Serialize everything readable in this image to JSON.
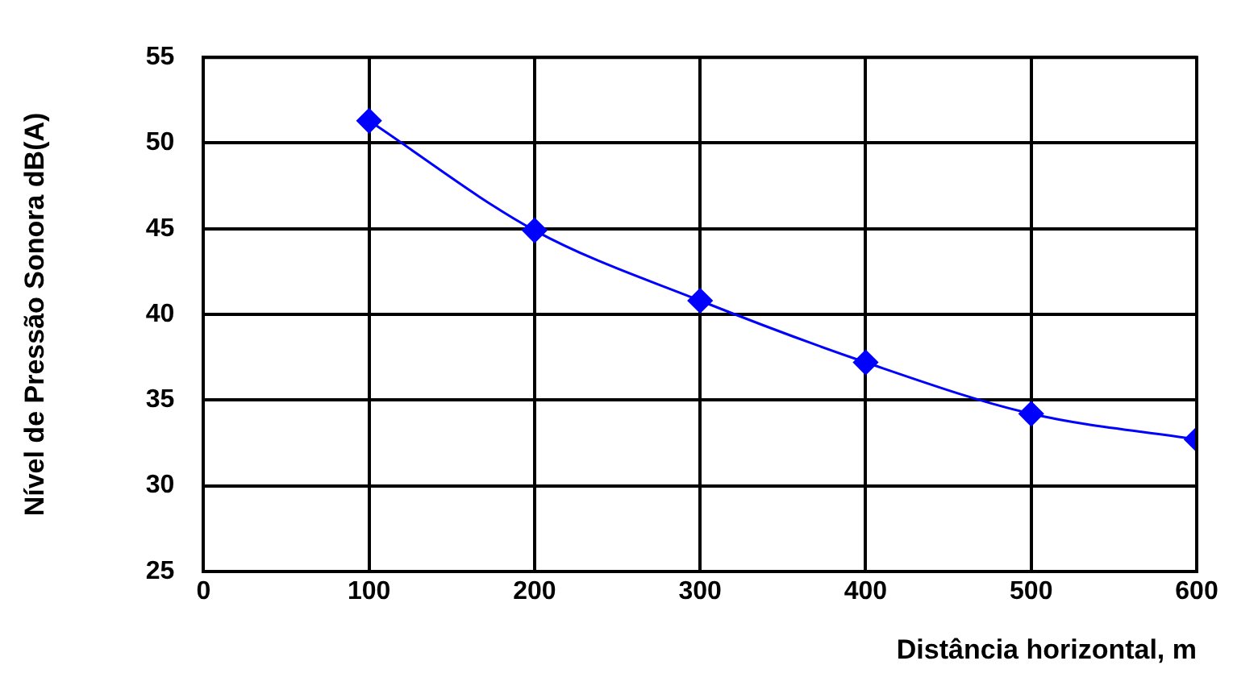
{
  "chart_data": {
    "type": "line",
    "xlabel": "Distância horizontal, m",
    "ylabel": "Nível de Pressão Sonora dB(A)",
    "x": [
      100,
      200,
      300,
      400,
      500,
      600
    ],
    "series": [
      {
        "color": "#0000ff",
        "values": [
          51.3,
          44.9,
          40.8,
          37.2,
          34.2,
          32.7
        ]
      }
    ],
    "xlim": [
      0,
      600
    ],
    "xticks": [
      0,
      100,
      200,
      300,
      400,
      500,
      600
    ],
    "ylim": [
      25,
      55
    ],
    "yticks": [
      25,
      30,
      35,
      40,
      45,
      50,
      55
    ],
    "grid": true,
    "legend": false,
    "marker": "diamond",
    "line_style": "solid"
  }
}
